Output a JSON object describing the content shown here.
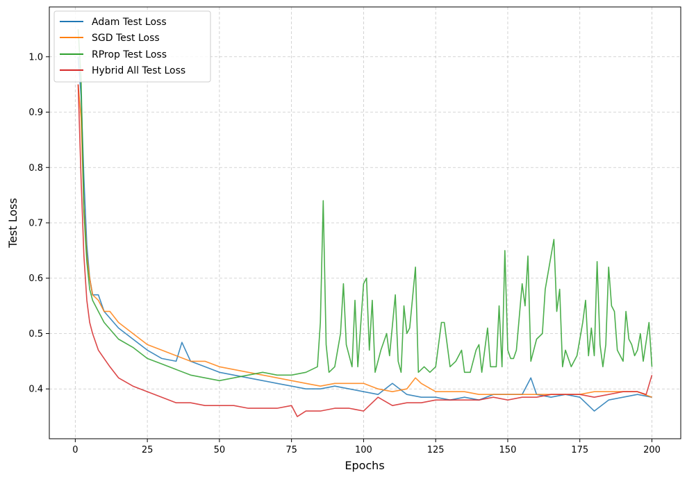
{
  "chart_data": {
    "type": "line",
    "title": "",
    "xlabel": "Epochs",
    "ylabel": "Test Loss",
    "xlim": [
      -9,
      210
    ],
    "ylim": [
      0.31,
      1.09
    ],
    "xticks": [
      0,
      25,
      50,
      75,
      100,
      125,
      150,
      175,
      200
    ],
    "yticks": [
      0.4,
      0.5,
      0.6,
      0.7,
      0.8,
      0.9,
      1.0
    ],
    "grid": true,
    "legend_position": "top-left",
    "series": [
      {
        "name": "Adam Test Loss",
        "color": "#1f77b4",
        "points": [
          [
            1,
            1.0
          ],
          [
            2,
            0.93
          ],
          [
            3,
            0.78
          ],
          [
            4,
            0.66
          ],
          [
            5,
            0.6
          ],
          [
            6,
            0.57
          ],
          [
            8,
            0.57
          ],
          [
            10,
            0.54
          ],
          [
            15,
            0.51
          ],
          [
            20,
            0.49
          ],
          [
            25,
            0.47
          ],
          [
            30,
            0.455
          ],
          [
            35,
            0.45
          ],
          [
            37,
            0.484
          ],
          [
            40,
            0.45
          ],
          [
            45,
            0.44
          ],
          [
            50,
            0.43
          ],
          [
            55,
            0.425
          ],
          [
            60,
            0.42
          ],
          [
            65,
            0.415
          ],
          [
            70,
            0.41
          ],
          [
            75,
            0.405
          ],
          [
            80,
            0.4
          ],
          [
            85,
            0.4
          ],
          [
            90,
            0.405
          ],
          [
            95,
            0.4
          ],
          [
            100,
            0.395
          ],
          [
            105,
            0.39
          ],
          [
            110,
            0.41
          ],
          [
            115,
            0.39
          ],
          [
            120,
            0.385
          ],
          [
            125,
            0.385
          ],
          [
            130,
            0.38
          ],
          [
            135,
            0.385
          ],
          [
            140,
            0.38
          ],
          [
            145,
            0.39
          ],
          [
            150,
            0.39
          ],
          [
            155,
            0.39
          ],
          [
            158,
            0.42
          ],
          [
            160,
            0.39
          ],
          [
            165,
            0.385
          ],
          [
            170,
            0.39
          ],
          [
            175,
            0.385
          ],
          [
            180,
            0.36
          ],
          [
            185,
            0.38
          ],
          [
            190,
            0.385
          ],
          [
            195,
            0.39
          ],
          [
            200,
            0.385
          ]
        ]
      },
      {
        "name": "SGD Test Loss",
        "color": "#ff7f0e",
        "points": [
          [
            1,
            0.95
          ],
          [
            2,
            0.89
          ],
          [
            3,
            0.73
          ],
          [
            4,
            0.64
          ],
          [
            5,
            0.6
          ],
          [
            6,
            0.57
          ],
          [
            8,
            0.56
          ],
          [
            10,
            0.54
          ],
          [
            12,
            0.54
          ],
          [
            15,
            0.52
          ],
          [
            20,
            0.5
          ],
          [
            25,
            0.48
          ],
          [
            30,
            0.47
          ],
          [
            35,
            0.46
          ],
          [
            40,
            0.45
          ],
          [
            45,
            0.45
          ],
          [
            50,
            0.44
          ],
          [
            55,
            0.435
          ],
          [
            60,
            0.43
          ],
          [
            65,
            0.425
          ],
          [
            70,
            0.42
          ],
          [
            75,
            0.415
          ],
          [
            80,
            0.41
          ],
          [
            85,
            0.405
          ],
          [
            90,
            0.41
          ],
          [
            95,
            0.41
          ],
          [
            100,
            0.41
          ],
          [
            105,
            0.4
          ],
          [
            110,
            0.395
          ],
          [
            115,
            0.4
          ],
          [
            118,
            0.42
          ],
          [
            120,
            0.41
          ],
          [
            125,
            0.395
          ],
          [
            130,
            0.395
          ],
          [
            135,
            0.395
          ],
          [
            140,
            0.39
          ],
          [
            145,
            0.39
          ],
          [
            150,
            0.39
          ],
          [
            155,
            0.39
          ],
          [
            160,
            0.39
          ],
          [
            165,
            0.39
          ],
          [
            170,
            0.39
          ],
          [
            175,
            0.39
          ],
          [
            180,
            0.395
          ],
          [
            185,
            0.395
          ],
          [
            190,
            0.395
          ],
          [
            195,
            0.395
          ],
          [
            200,
            0.385
          ]
        ]
      },
      {
        "name": "RProp Test Loss",
        "color": "#2ca02c",
        "points": [
          [
            1,
            1.05
          ],
          [
            2,
            0.96
          ],
          [
            3,
            0.72
          ],
          [
            4,
            0.63
          ],
          [
            5,
            0.58
          ],
          [
            6,
            0.56
          ],
          [
            8,
            0.54
          ],
          [
            10,
            0.52
          ],
          [
            15,
            0.49
          ],
          [
            20,
            0.475
          ],
          [
            25,
            0.455
          ],
          [
            30,
            0.445
          ],
          [
            35,
            0.435
          ],
          [
            40,
            0.425
          ],
          [
            45,
            0.42
          ],
          [
            50,
            0.415
          ],
          [
            55,
            0.42
          ],
          [
            60,
            0.425
          ],
          [
            65,
            0.43
          ],
          [
            70,
            0.425
          ],
          [
            75,
            0.425
          ],
          [
            80,
            0.43
          ],
          [
            84,
            0.44
          ],
          [
            85,
            0.52
          ],
          [
            86,
            0.74
          ],
          [
            87,
            0.48
          ],
          [
            88,
            0.43
          ],
          [
            90,
            0.44
          ],
          [
            92,
            0.5
          ],
          [
            93,
            0.59
          ],
          [
            94,
            0.48
          ],
          [
            96,
            0.44
          ],
          [
            97,
            0.56
          ],
          [
            98,
            0.44
          ],
          [
            100,
            0.59
          ],
          [
            101,
            0.6
          ],
          [
            102,
            0.47
          ],
          [
            103,
            0.56
          ],
          [
            104,
            0.43
          ],
          [
            106,
            0.47
          ],
          [
            108,
            0.5
          ],
          [
            109,
            0.46
          ],
          [
            111,
            0.57
          ],
          [
            112,
            0.45
          ],
          [
            113,
            0.43
          ],
          [
            114,
            0.55
          ],
          [
            115,
            0.5
          ],
          [
            116,
            0.51
          ],
          [
            118,
            0.62
          ],
          [
            119,
            0.43
          ],
          [
            121,
            0.44
          ],
          [
            123,
            0.43
          ],
          [
            125,
            0.44
          ],
          [
            127,
            0.52
          ],
          [
            128,
            0.52
          ],
          [
            130,
            0.44
          ],
          [
            132,
            0.45
          ],
          [
            134,
            0.47
          ],
          [
            135,
            0.43
          ],
          [
            137,
            0.43
          ],
          [
            139,
            0.47
          ],
          [
            140,
            0.48
          ],
          [
            141,
            0.43
          ],
          [
            143,
            0.51
          ],
          [
            144,
            0.44
          ],
          [
            146,
            0.44
          ],
          [
            147,
            0.55
          ],
          [
            148,
            0.44
          ],
          [
            149,
            0.65
          ],
          [
            150,
            0.47
          ],
          [
            151,
            0.455
          ],
          [
            152,
            0.455
          ],
          [
            153,
            0.47
          ],
          [
            155,
            0.59
          ],
          [
            156,
            0.55
          ],
          [
            157,
            0.64
          ],
          [
            158,
            0.45
          ],
          [
            160,
            0.49
          ],
          [
            162,
            0.5
          ],
          [
            163,
            0.58
          ],
          [
            165,
            0.64
          ],
          [
            166,
            0.67
          ],
          [
            167,
            0.54
          ],
          [
            168,
            0.58
          ],
          [
            169,
            0.44
          ],
          [
            170,
            0.47
          ],
          [
            172,
            0.44
          ],
          [
            174,
            0.46
          ],
          [
            176,
            0.52
          ],
          [
            177,
            0.56
          ],
          [
            178,
            0.46
          ],
          [
            179,
            0.51
          ],
          [
            180,
            0.46
          ],
          [
            181,
            0.63
          ],
          [
            182,
            0.48
          ],
          [
            183,
            0.44
          ],
          [
            184,
            0.48
          ],
          [
            185,
            0.62
          ],
          [
            186,
            0.55
          ],
          [
            187,
            0.54
          ],
          [
            188,
            0.47
          ],
          [
            190,
            0.45
          ],
          [
            191,
            0.54
          ],
          [
            192,
            0.49
          ],
          [
            193,
            0.48
          ],
          [
            194,
            0.46
          ],
          [
            195,
            0.47
          ],
          [
            196,
            0.5
          ],
          [
            197,
            0.45
          ],
          [
            199,
            0.52
          ],
          [
            200,
            0.44
          ]
        ]
      },
      {
        "name": "Hybrid All Test Loss",
        "color": "#d62728",
        "points": [
          [
            1,
            0.95
          ],
          [
            2,
            0.78
          ],
          [
            3,
            0.64
          ],
          [
            4,
            0.56
          ],
          [
            5,
            0.52
          ],
          [
            6,
            0.5
          ],
          [
            8,
            0.47
          ],
          [
            10,
            0.455
          ],
          [
            12,
            0.44
          ],
          [
            15,
            0.42
          ],
          [
            20,
            0.405
          ],
          [
            25,
            0.395
          ],
          [
            30,
            0.385
          ],
          [
            35,
            0.375
          ],
          [
            40,
            0.375
          ],
          [
            45,
            0.37
          ],
          [
            50,
            0.37
          ],
          [
            55,
            0.37
          ],
          [
            60,
            0.365
          ],
          [
            65,
            0.365
          ],
          [
            70,
            0.365
          ],
          [
            75,
            0.37
          ],
          [
            77,
            0.35
          ],
          [
            80,
            0.36
          ],
          [
            85,
            0.36
          ],
          [
            90,
            0.365
          ],
          [
            95,
            0.365
          ],
          [
            100,
            0.36
          ],
          [
            105,
            0.385
          ],
          [
            110,
            0.37
          ],
          [
            115,
            0.375
          ],
          [
            120,
            0.375
          ],
          [
            125,
            0.38
          ],
          [
            130,
            0.38
          ],
          [
            135,
            0.38
          ],
          [
            140,
            0.38
          ],
          [
            145,
            0.385
          ],
          [
            150,
            0.38
          ],
          [
            155,
            0.385
          ],
          [
            160,
            0.385
          ],
          [
            165,
            0.39
          ],
          [
            170,
            0.39
          ],
          [
            175,
            0.39
          ],
          [
            180,
            0.385
          ],
          [
            185,
            0.39
          ],
          [
            190,
            0.395
          ],
          [
            195,
            0.395
          ],
          [
            198,
            0.39
          ],
          [
            200,
            0.425
          ]
        ]
      }
    ]
  }
}
